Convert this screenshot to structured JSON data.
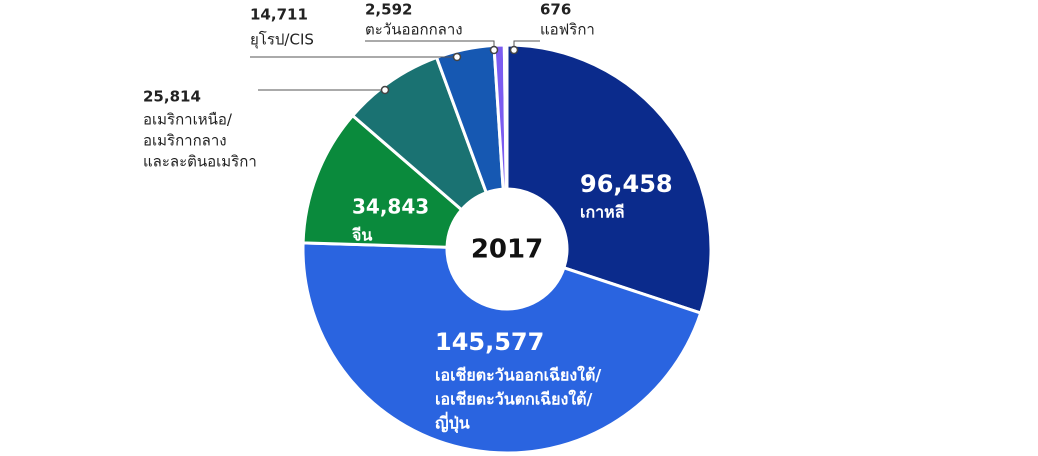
{
  "chart_data": {
    "type": "donut",
    "title": "2017",
    "categories": [
      [
        "เกาหลี"
      ],
      [
        "เอเชียตะวันออกเฉียงใต้/",
        "เอเชียตะวันตกเฉียงใต้/",
        "ญี่ปุ่น"
      ],
      [
        "จีน"
      ],
      [
        "อเมริกาเหนือ/",
        "อเมริกากลาง",
        "และละตินอเมริกา"
      ],
      [
        "ยุโรป/CIS"
      ],
      [
        "ตะวันออกกลาง"
      ],
      [
        "แอฟริกา"
      ]
    ],
    "values": [
      96458,
      145577,
      34843,
      25814,
      14711,
      2592,
      676
    ],
    "value_labels": [
      "96,458",
      "145,577",
      "34,843",
      "25,814",
      "14,711",
      "2,592",
      "676"
    ],
    "colors": [
      "#0b2b8c",
      "#2a64e0",
      "#0a8a3c",
      "#1a7272",
      "#1658b2",
      "#7b5cf0",
      "#3a86d2"
    ]
  }
}
